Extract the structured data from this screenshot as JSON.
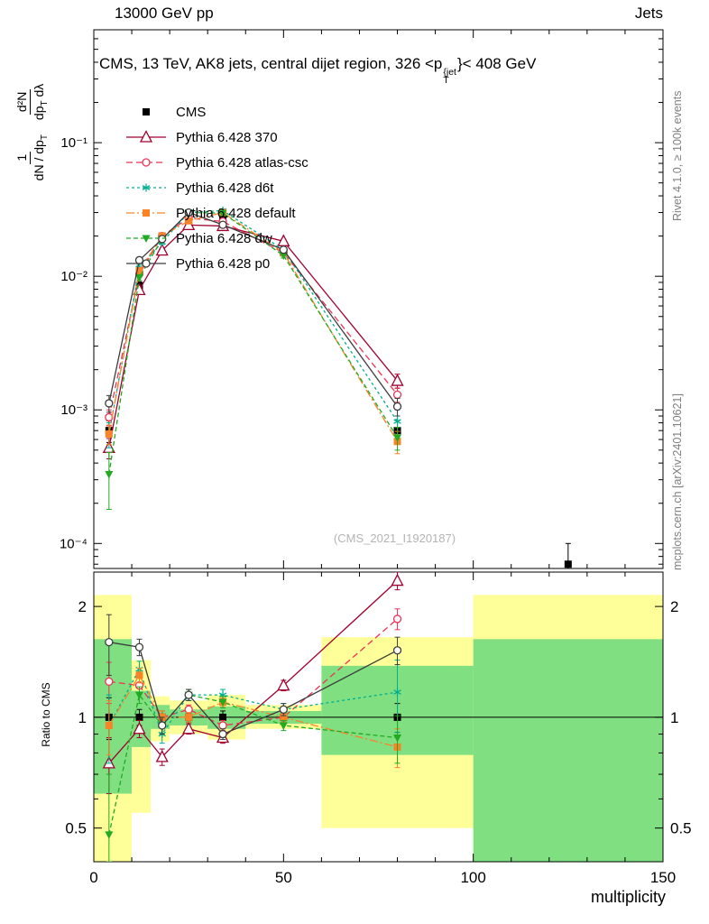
{
  "header": {
    "left": "13000 GeV pp",
    "right": "Jets"
  },
  "title": {
    "pre": "CMS, 13 TeV, AK8 jets, central dijet region, 326 <p",
    "sup": "{jet",
    "sub": "T",
    "post": "}< 408 GeV"
  },
  "ylabel": {
    "f1num": "1",
    "f1den_pre": "dN / dp",
    "f1den_sub": "T",
    "f2num": "d²N",
    "f2den_pre": "dp",
    "f2den_sub": "T",
    "f2den_post": " dλ"
  },
  "ratio_label": "Ratio to CMS",
  "xlabel": "multiplicity",
  "right_margin": {
    "top": "Rivet 4.1.0, ≥ 100k events",
    "bottom": "mcplots.cern.ch [arXiv:2401.10621]"
  },
  "watermark": "(CMS_2021_I1920187)",
  "chart_data": {
    "type": "line",
    "title": "CMS, 13 TeV, AK8 jets, central dijet region, 326 <p_T^{jet}< 408 GeV",
    "xlabel": "multiplicity",
    "ratio_ylabel": "Ratio to CMS",
    "legend_position": "upper-left",
    "xlim": [
      0,
      150
    ],
    "main_ylim_log": [
      6.5e-05,
      0.7
    ],
    "ratio_ylim_log": [
      0.405,
      2.48
    ],
    "x_major_ticks": [
      0,
      50,
      100,
      150
    ],
    "x_tick_labels": [
      "0",
      "50",
      "100",
      "150"
    ],
    "y_major_ticks": [
      0.0001,
      0.001,
      0.01,
      0.1
    ],
    "y_tick_labels": [
      "10⁻⁴",
      "10⁻³",
      "10⁻²",
      "10⁻¹"
    ],
    "ratio_ticks": [
      0.5,
      1,
      2
    ],
    "ratio_tick_labels": [
      "0.5",
      "1",
      "2"
    ],
    "ratio_minor_ticks": [
      0.6,
      0.7,
      0.8,
      0.9
    ],
    "colors": {
      "band_yellow": "#ffff99",
      "band_green": "#80df80"
    },
    "x": [
      4,
      12,
      18,
      25,
      34,
      50,
      80
    ],
    "cms_extra_point": {
      "x": 125,
      "y": 7e-05,
      "err": 3e-05
    },
    "bands": {
      "edges": [
        0,
        10,
        15,
        20,
        30,
        40,
        60,
        100,
        150
      ],
      "yellow": [
        [
          0.38,
          2.15
        ],
        [
          0.55,
          1.43
        ],
        [
          0.86,
          1.14
        ],
        [
          0.9,
          1.11
        ],
        [
          0.87,
          1.15
        ],
        [
          0.93,
          1.08
        ],
        [
          0.5,
          1.65
        ],
        [
          0.38,
          2.15
        ]
      ],
      "green": [
        [
          0.62,
          1.63
        ],
        [
          0.83,
          1.18
        ],
        [
          0.93,
          1.08
        ],
        [
          0.95,
          1.05
        ],
        [
          0.93,
          1.07
        ],
        [
          0.96,
          1.04
        ],
        [
          0.79,
          1.38
        ],
        [
          0.4,
          1.63
        ]
      ]
    },
    "series": [
      {
        "key": "cms",
        "name": "CMS",
        "color": "#000000",
        "marker": "square",
        "line": "none",
        "msize": 4,
        "values": [
          0.0007,
          0.0085,
          0.02,
          0.026,
          0.027,
          0.015,
          0.0007
        ],
        "errs": [
          0.00013,
          0.0006,
          0.0009,
          0.0009,
          0.0011,
          0.0007,
          0.00013
        ],
        "ratio": [
          1,
          1,
          1,
          1,
          1,
          1,
          1
        ],
        "ratio_errs": [
          0.13,
          0.05,
          0.04,
          0.03,
          0.04,
          0.03,
          0.09
        ]
      },
      {
        "key": "370",
        "name": "Pythia 6.428 370",
        "color": "#a00030",
        "marker": "triangle-up-open",
        "line": "solid",
        "msize": 5,
        "values": [
          0.00052,
          0.0079,
          0.0156,
          0.0242,
          0.0238,
          0.0183,
          0.00165
        ],
        "errs": [
          9e-05,
          0.0004,
          0.0006,
          0.0007,
          0.0007,
          0.0006,
          0.0002
        ],
        "ratio": [
          0.75,
          0.93,
          0.78,
          0.93,
          0.88,
          1.22,
          2.35
        ],
        "ratio_errs": [
          0.13,
          0.05,
          0.04,
          0.03,
          0.03,
          0.04,
          0.13
        ]
      },
      {
        "key": "atlas-csc",
        "name": "Pythia 6.428 atlas-csc",
        "color": "#ee3355",
        "marker": "circle-open",
        "line": "dash",
        "msize": 4,
        "values": [
          0.00088,
          0.0104,
          0.02,
          0.0273,
          0.0257,
          0.015,
          0.0013
        ],
        "errs": [
          0.00012,
          0.0005,
          0.0007,
          0.0008,
          0.0008,
          0.0006,
          0.00016
        ],
        "ratio": [
          1.25,
          1.22,
          1.0,
          1.05,
          0.95,
          1.0,
          1.85
        ],
        "ratio_errs": [
          0.16,
          0.06,
          0.04,
          0.03,
          0.03,
          0.04,
          0.12
        ]
      },
      {
        "key": "d6t",
        "name": "Pythia 6.428 d6t",
        "color": "#00b090",
        "marker": "star",
        "line": "shortdash",
        "msize": 4.5,
        "values": [
          0.00066,
          0.0115,
          0.018,
          0.03,
          0.031,
          0.0158,
          0.00082
        ],
        "errs": [
          0.00014,
          0.0006,
          0.0007,
          0.0009,
          0.0009,
          0.0006,
          0.00018
        ],
        "ratio": [
          0.95,
          1.35,
          0.9,
          1.15,
          1.15,
          1.05,
          1.17
        ],
        "ratio_errs": [
          0.2,
          0.07,
          0.05,
          0.04,
          0.04,
          0.04,
          0.26
        ]
      },
      {
        "key": "default",
        "name": "Pythia 6.428 default",
        "color": "#f98428",
        "marker": "square",
        "line": "dashdot",
        "msize": 4,
        "values": [
          0.00066,
          0.011,
          0.02,
          0.026,
          0.03,
          0.015,
          0.00058
        ],
        "errs": [
          0.00011,
          0.0005,
          0.0007,
          0.0008,
          0.0009,
          0.0006,
          0.00011
        ],
        "ratio": [
          0.95,
          1.3,
          1.0,
          1.0,
          1.1,
          1.0,
          0.83
        ],
        "ratio_errs": [
          0.16,
          0.06,
          0.04,
          0.03,
          0.03,
          0.03,
          0.1
        ]
      },
      {
        "key": "dw",
        "name": "Pythia 6.428 dw",
        "color": "#22aa22",
        "marker": "triangle-down",
        "line": "meddash",
        "msize": 4,
        "values": [
          0.00033,
          0.0098,
          0.019,
          0.03,
          0.0297,
          0.0143,
          0.00062
        ],
        "errs": [
          0.00015,
          0.0005,
          0.0007,
          0.0009,
          0.0009,
          0.0006,
          0.00012
        ],
        "ratio": [
          0.48,
          1.15,
          0.95,
          1.15,
          1.1,
          0.95,
          0.88
        ],
        "ratio_errs": [
          0.22,
          0.06,
          0.05,
          0.04,
          0.04,
          0.03,
          0.13
        ]
      },
      {
        "key": "p0",
        "name": "Pythia 6.428 p0",
        "color": "#3c3c3c",
        "marker": "circle-open",
        "line": "solid",
        "msize": 4,
        "values": [
          0.00112,
          0.0132,
          0.019,
          0.03,
          0.0243,
          0.0158,
          0.00106
        ],
        "errs": [
          0.00016,
          0.0006,
          0.0007,
          0.0009,
          0.0008,
          0.0006,
          0.00016
        ],
        "ratio": [
          1.6,
          1.55,
          0.95,
          1.15,
          0.9,
          1.05,
          1.52
        ],
        "ratio_errs": [
          0.3,
          0.08,
          0.05,
          0.04,
          0.03,
          0.04,
          0.13
        ]
      }
    ]
  }
}
